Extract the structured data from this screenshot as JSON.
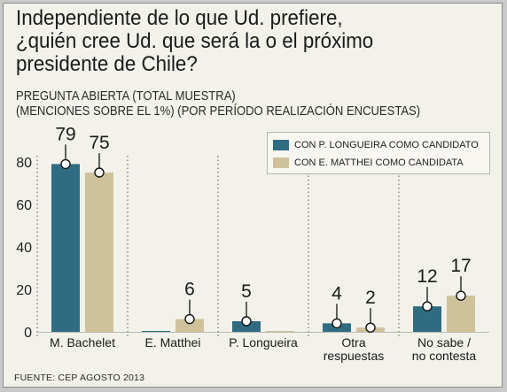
{
  "title_lines": [
    "Independiente de lo que Ud. prefiere,",
    "¿quién cree Ud. que será la o el próximo",
    "presidente de Chile?"
  ],
  "subtitle_lines": [
    "PREGUNTA ABIERTA (TOTAL MUESTRA)",
    "(MENCIONES SOBRE EL 1%) (POR PERÍODO REALIZACIÓN ENCUESTAS)"
  ],
  "source": "FUENTE: CEP AGOSTO 2013",
  "colors": {
    "series1": "#2f6c82",
    "series2": "#cfc29a",
    "background": "#f2f1ea"
  },
  "chart_data": {
    "type": "bar",
    "categories": [
      [
        "M. Bachelet"
      ],
      [
        "E. Matthei"
      ],
      [
        "P. Longueira"
      ],
      [
        "Otra",
        "respuestas"
      ],
      [
        "No sabe /",
        "no contesta"
      ]
    ],
    "series": [
      {
        "name": "CON P. LONGUEIRA COMO CANDIDATO",
        "values": [
          79,
          0,
          5,
          4,
          12
        ],
        "labels": [
          "79",
          "",
          "5",
          "4",
          "12"
        ]
      },
      {
        "name": "CON E. MATTHEI COMO CANDIDATA",
        "values": [
          75,
          6,
          0,
          2,
          17
        ],
        "labels": [
          "75",
          "6",
          "",
          "2",
          "17"
        ]
      }
    ],
    "ylim": [
      0,
      80
    ],
    "yticks": [
      "0",
      "20",
      "40",
      "60",
      "80"
    ],
    "legend": "top-right"
  }
}
